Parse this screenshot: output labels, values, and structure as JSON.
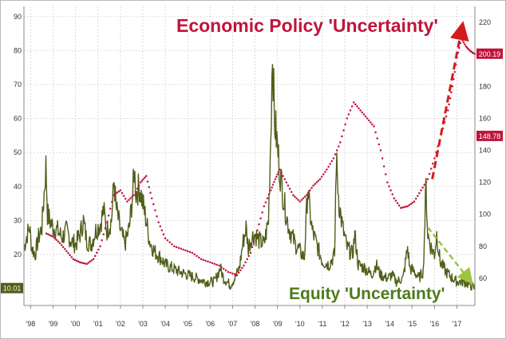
{
  "chart_data": {
    "type": "line",
    "title": "",
    "xlabel": "",
    "ylabel": "",
    "x_tick_labels": [
      "'98",
      "'99",
      "'00",
      "'01",
      "'02",
      "'03",
      "'04",
      "'05",
      "'06",
      "'07",
      "'08",
      "'09",
      "'10",
      "'11",
      "'12",
      "'13",
      "'14",
      "'15",
      "'16",
      "'17"
    ],
    "x_range": [
      1997.7,
      2017.8
    ],
    "left_axis": {
      "range": [
        5,
        93
      ],
      "ticks": [
        20,
        30,
        40,
        50,
        60,
        70,
        80,
        90
      ]
    },
    "right_axis": {
      "range": [
        43,
        230
      ],
      "ticks": [
        60,
        80,
        100,
        120,
        140,
        160,
        180,
        200,
        220
      ]
    },
    "grid": true,
    "series": [
      {
        "name": "",
        "axis": "left",
        "style": "line",
        "color": "#4f5f19",
        "points": [
          [
            1997.7,
            22
          ],
          [
            1997.85,
            26
          ],
          [
            1997.95,
            28
          ],
          [
            1998.05,
            22
          ],
          [
            1998.2,
            20
          ],
          [
            1998.35,
            25
          ],
          [
            1998.5,
            28
          ],
          [
            1998.6,
            38
          ],
          [
            1998.68,
            46
          ],
          [
            1998.75,
            32
          ],
          [
            1998.85,
            30
          ],
          [
            1999.0,
            28
          ],
          [
            1999.2,
            27
          ],
          [
            1999.4,
            25
          ],
          [
            1999.6,
            27
          ],
          [
            1999.8,
            24
          ],
          [
            2000.0,
            23
          ],
          [
            2000.2,
            26
          ],
          [
            2000.35,
            30
          ],
          [
            2000.5,
            24
          ],
          [
            2000.7,
            23
          ],
          [
            2000.9,
            27
          ],
          [
            2001.1,
            29
          ],
          [
            2001.25,
            33
          ],
          [
            2001.4,
            27
          ],
          [
            2001.6,
            30
          ],
          [
            2001.72,
            42
          ],
          [
            2001.8,
            34
          ],
          [
            2002.0,
            27
          ],
          [
            2002.2,
            23
          ],
          [
            2002.4,
            28
          ],
          [
            2002.55,
            38
          ],
          [
            2002.62,
            45
          ],
          [
            2002.7,
            38
          ],
          [
            2002.85,
            40
          ],
          [
            2003.0,
            35
          ],
          [
            2003.15,
            30
          ],
          [
            2003.3,
            24
          ],
          [
            2003.5,
            21
          ],
          [
            2003.8,
            19
          ],
          [
            2004.0,
            17
          ],
          [
            2004.3,
            16
          ],
          [
            2004.6,
            15
          ],
          [
            2005.0,
            14
          ],
          [
            2005.4,
            13
          ],
          [
            2005.8,
            12
          ],
          [
            2006.2,
            12
          ],
          [
            2006.45,
            16
          ],
          [
            2006.6,
            13
          ],
          [
            2006.9,
            11
          ],
          [
            2007.1,
            13
          ],
          [
            2007.3,
            16
          ],
          [
            2007.45,
            23
          ],
          [
            2007.6,
            28
          ],
          [
            2007.7,
            22
          ],
          [
            2007.85,
            25
          ],
          [
            2008.0,
            26
          ],
          [
            2008.2,
            24
          ],
          [
            2008.4,
            23
          ],
          [
            2008.6,
            30
          ],
          [
            2008.7,
            55
          ],
          [
            2008.78,
            81
          ],
          [
            2008.86,
            60
          ],
          [
            2008.95,
            55
          ],
          [
            2009.1,
            45
          ],
          [
            2009.3,
            35
          ],
          [
            2009.5,
            28
          ],
          [
            2009.8,
            23
          ],
          [
            2010.0,
            21
          ],
          [
            2010.2,
            19
          ],
          [
            2010.35,
            40
          ],
          [
            2010.42,
            34
          ],
          [
            2010.55,
            27
          ],
          [
            2010.8,
            22
          ],
          [
            2011.0,
            18
          ],
          [
            2011.3,
            17
          ],
          [
            2011.55,
            20
          ],
          [
            2011.62,
            48
          ],
          [
            2011.75,
            35
          ],
          [
            2011.9,
            28
          ],
          [
            2012.1,
            22
          ],
          [
            2012.35,
            20
          ],
          [
            2012.45,
            26
          ],
          [
            2012.6,
            17
          ],
          [
            2012.9,
            16
          ],
          [
            2013.2,
            14
          ],
          [
            2013.4,
            17
          ],
          [
            2013.6,
            14
          ],
          [
            2013.9,
            13
          ],
          [
            2014.1,
            14
          ],
          [
            2014.3,
            12
          ],
          [
            2014.6,
            13
          ],
          [
            2014.8,
            22
          ],
          [
            2014.9,
            16
          ],
          [
            2015.1,
            15
          ],
          [
            2015.3,
            13
          ],
          [
            2015.5,
            15
          ],
          [
            2015.62,
            40
          ],
          [
            2015.7,
            26
          ],
          [
            2015.85,
            22
          ],
          [
            2016.0,
            20
          ],
          [
            2016.1,
            26
          ],
          [
            2016.25,
            18
          ],
          [
            2016.5,
            15
          ],
          [
            2016.8,
            13
          ],
          [
            2017.0,
            12
          ],
          [
            2017.3,
            12
          ],
          [
            2017.6,
            11
          ],
          [
            2017.8,
            10.01
          ]
        ]
      },
      {
        "name": "",
        "axis": "right",
        "style": "dotted",
        "color": "#c0143c",
        "points": [
          [
            1998.7,
            88
          ],
          [
            1999.0,
            86
          ],
          [
            1999.3,
            82
          ],
          [
            1999.6,
            77
          ],
          [
            1999.9,
            72
          ],
          [
            2000.2,
            70
          ],
          [
            2000.5,
            69
          ],
          [
            2000.8,
            72
          ],
          [
            2001.1,
            80
          ],
          [
            2001.4,
            95
          ],
          [
            2001.7,
            112
          ],
          [
            2002.0,
            115
          ],
          [
            2002.3,
            108
          ],
          [
            2002.6,
            112
          ],
          [
            2002.9,
            120
          ],
          [
            2003.15,
            124
          ],
          [
            2003.4,
            110
          ],
          [
            2003.7,
            95
          ],
          [
            2004.0,
            85
          ],
          [
            2004.4,
            80
          ],
          [
            2004.8,
            78
          ],
          [
            2005.2,
            76
          ],
          [
            2005.6,
            72
          ],
          [
            2006.0,
            70
          ],
          [
            2006.4,
            68
          ],
          [
            2006.8,
            64
          ],
          [
            2007.2,
            62
          ],
          [
            2007.5,
            68
          ],
          [
            2007.8,
            76
          ],
          [
            2008.1,
            90
          ],
          [
            2008.4,
            105
          ],
          [
            2008.7,
            115
          ],
          [
            2008.9,
            122
          ],
          [
            2009.1,
            128
          ],
          [
            2009.4,
            120
          ],
          [
            2009.7,
            112
          ],
          [
            2010.0,
            108
          ],
          [
            2010.3,
            112
          ],
          [
            2010.6,
            118
          ],
          [
            2010.9,
            122
          ],
          [
            2011.2,
            128
          ],
          [
            2011.5,
            135
          ],
          [
            2011.8,
            145
          ],
          [
            2012.1,
            160
          ],
          [
            2012.4,
            170
          ],
          [
            2012.7,
            165
          ],
          [
            2013.0,
            160
          ],
          [
            2013.3,
            155
          ],
          [
            2013.6,
            140
          ],
          [
            2013.9,
            120
          ],
          [
            2014.2,
            110
          ],
          [
            2014.5,
            104
          ],
          [
            2014.8,
            105
          ],
          [
            2015.1,
            108
          ],
          [
            2015.4,
            115
          ],
          [
            2015.7,
            122
          ],
          [
            2016.0,
            135
          ],
          [
            2016.3,
            150
          ],
          [
            2016.6,
            165
          ],
          [
            2016.8,
            180
          ],
          [
            2017.0,
            198
          ],
          [
            2017.2,
            210
          ],
          [
            2017.4,
            205
          ],
          [
            2017.6,
            202
          ],
          [
            2017.8,
            200.19
          ]
        ]
      }
    ],
    "last_value_labels": [
      {
        "text": "10.01",
        "axis": "left",
        "value": 10.01,
        "color": "#4f5f19"
      },
      {
        "text": "200.19",
        "axis": "right",
        "value": 200.19,
        "color": "#c0143c"
      },
      {
        "text": "148.78",
        "axis": "right",
        "value": 148.78,
        "color": "#c0143c"
      }
    ],
    "annotations": [
      {
        "text": "Economic Policy 'Uncertainty'",
        "color": "#c0143c"
      },
      {
        "text": "Equity 'Uncertainty'",
        "color": "#4f7a1c"
      }
    ],
    "trend_arrows": [
      {
        "color": "#d31c1c",
        "axis": "right",
        "from": [
          2015.9,
          122
        ],
        "to": [
          2017.2,
          215
        ]
      },
      {
        "color": "#9cc43c",
        "axis": "left",
        "from": [
          2015.7,
          28
        ],
        "to": [
          2017.5,
          13
        ]
      }
    ]
  }
}
